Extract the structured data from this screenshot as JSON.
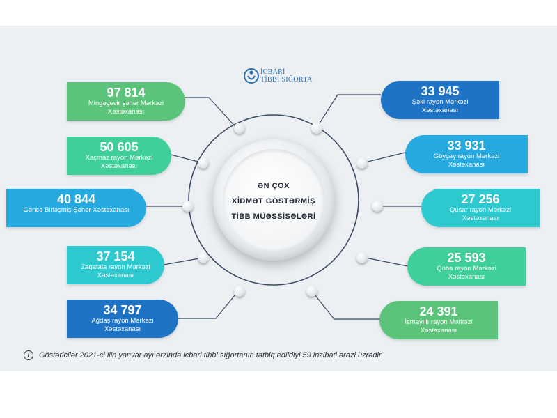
{
  "logo": {
    "line1": "İCBARİ",
    "line2": "TİBBİ SIĞORTA"
  },
  "center": {
    "line1": "ƏN ÇOX",
    "line2": "XİDMƏT GÖSTƏRMİŞ",
    "line3": "TİBB MÜƏSSİSƏLƏRİ"
  },
  "left_items": [
    {
      "value": "97 814",
      "label": "Mingəçevir şəhər Mərkəzi Xəstəxanası",
      "color": "#5cc47a"
    },
    {
      "value": "50 605",
      "label": "Xaçmaz rayon Mərkəzi Xəstəxanası",
      "color": "#3fcf9a"
    },
    {
      "value": "40 844",
      "label": "Gəncə Birləşmiş Şəhər Xəstəxanası",
      "color": "#26a9de"
    },
    {
      "value": "37 154",
      "label": "Zaqatala rayon Mərkəzi Xəstəxanası",
      "color": "#2ec8cf"
    },
    {
      "value": "34 797",
      "label": "Ağdaş rayon Mərkəzi Xəstəxanası",
      "color": "#1f73c4"
    }
  ],
  "right_items": [
    {
      "value": "33 945",
      "label": "Şəki rayon Mərkəzi Xəstəxanası",
      "color": "#1f73c4"
    },
    {
      "value": "33 931",
      "label": "Göyçay rayon Mərkəzi Xəstəxanası",
      "color": "#26a9de"
    },
    {
      "value": "27 256",
      "label": "Qusar rayon Mərkəzi Xəstəxanası",
      "color": "#2ec8cf"
    },
    {
      "value": "25 593",
      "label": "Quba rayon Mərkəzi Xəstəxanası",
      "color": "#3fcf9a"
    },
    {
      "value": "24 391",
      "label": "İsmayıllı rayon Mərkəzi Xəstəxanası",
      "color": "#5cc47a"
    }
  ],
  "footer": {
    "icon": "info-icon",
    "text": "Göstəricilər 2021-ci ilin yanvar ayı ərzində icbari tibbi sığortanın tətbiq edildiyi 59 inzibati ərazi üzrədir"
  }
}
